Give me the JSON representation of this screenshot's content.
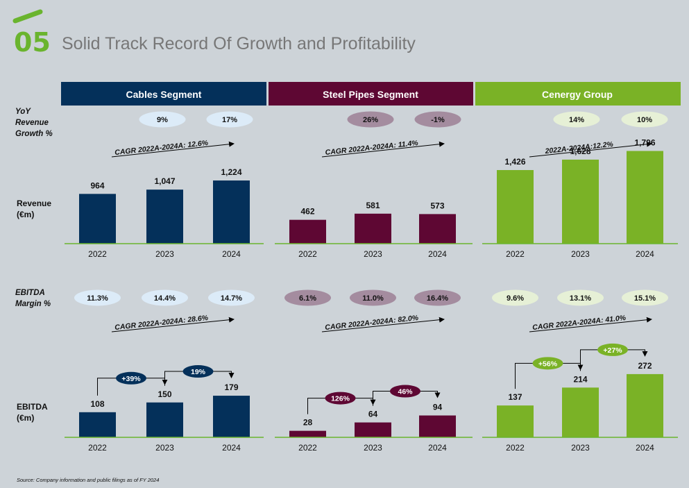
{
  "header": {
    "number": "05",
    "title": "Solid Track Record Of Growth and Profitability"
  },
  "colors": {
    "cables": "#04305a",
    "pipes": "#5e0733",
    "group": "#7ab226",
    "cables_pill": "#dcebf8",
    "pipes_pill": "#a48c9f",
    "group_pill": "#e6f0d6",
    "accent": "#6ab42e",
    "background": "#cdd3d8"
  },
  "row_labels": {
    "yoy": [
      "YoY",
      "Revenue",
      "Growth %"
    ],
    "revenue": [
      "Revenue",
      "(€m)"
    ],
    "margin": [
      "EBITDA",
      "Margin %"
    ],
    "ebitda": [
      "EBITDA",
      "(€m)"
    ]
  },
  "source": "Source:  Company information and public filings as of FY 2024",
  "chart_data": [
    {
      "type": "bar",
      "segment": "Cables Segment",
      "metric": "Revenue (€m)",
      "categories": [
        "2022",
        "2023",
        "2024"
      ],
      "values": [
        964,
        1047,
        1224
      ],
      "value_labels": [
        "964",
        "1,047",
        "1,224"
      ],
      "growth_pills": [
        "9%",
        "17%"
      ],
      "cagr_label": "CAGR 2022A-2024A: 12.6%"
    },
    {
      "type": "bar",
      "segment": "Steel Pipes Segment",
      "metric": "Revenue (€m)",
      "categories": [
        "2022",
        "2023",
        "2024"
      ],
      "values": [
        462,
        581,
        573
      ],
      "value_labels": [
        "462",
        "581",
        "573"
      ],
      "growth_pills": [
        "26%",
        "-1%"
      ],
      "cagr_label": "CAGR 2022A-2024A: 11.4%"
    },
    {
      "type": "bar",
      "segment": "Cenergy Group",
      "metric": "Revenue (€m)",
      "categories": [
        "2022",
        "2023",
        "2024"
      ],
      "values": [
        1426,
        1628,
        1796
      ],
      "value_labels": [
        "1,426",
        "1,628",
        "1,796"
      ],
      "growth_pills": [
        "14%",
        "10%"
      ],
      "cagr_label": "2022A-2024A:12.2%"
    },
    {
      "type": "bar",
      "segment": "Cables Segment",
      "metric": "EBITDA (€m)",
      "categories": [
        "2022",
        "2023",
        "2024"
      ],
      "values": [
        108,
        150,
        179
      ],
      "value_labels": [
        "108",
        "150",
        "179"
      ],
      "margins": [
        "11.3%",
        "14.4%",
        "14.7%"
      ],
      "growth_labels": [
        "+39%",
        "19%"
      ],
      "cagr_label": "CAGR 2022A-2024A: 28.6%"
    },
    {
      "type": "bar",
      "segment": "Steel Pipes Segment",
      "metric": "EBITDA (€m)",
      "categories": [
        "2022",
        "2023",
        "2024"
      ],
      "values": [
        28,
        64,
        94
      ],
      "value_labels": [
        "28",
        "64",
        "94"
      ],
      "margins": [
        "6.1%",
        "11.0%",
        "16.4%"
      ],
      "growth_labels": [
        "126%",
        "46%"
      ],
      "cagr_label": "CAGR 2022A-2024A: 82.0%"
    },
    {
      "type": "bar",
      "segment": "Cenergy Group",
      "metric": "EBITDA (€m)",
      "categories": [
        "2022",
        "2023",
        "2024"
      ],
      "values": [
        137,
        214,
        272
      ],
      "value_labels": [
        "137",
        "214",
        "272"
      ],
      "margins": [
        "9.6%",
        "13.1%",
        "15.1%"
      ],
      "growth_labels": [
        "+56%",
        "+27%"
      ],
      "cagr_label": "CAGR 2022A-2024A: 41.0%"
    }
  ]
}
